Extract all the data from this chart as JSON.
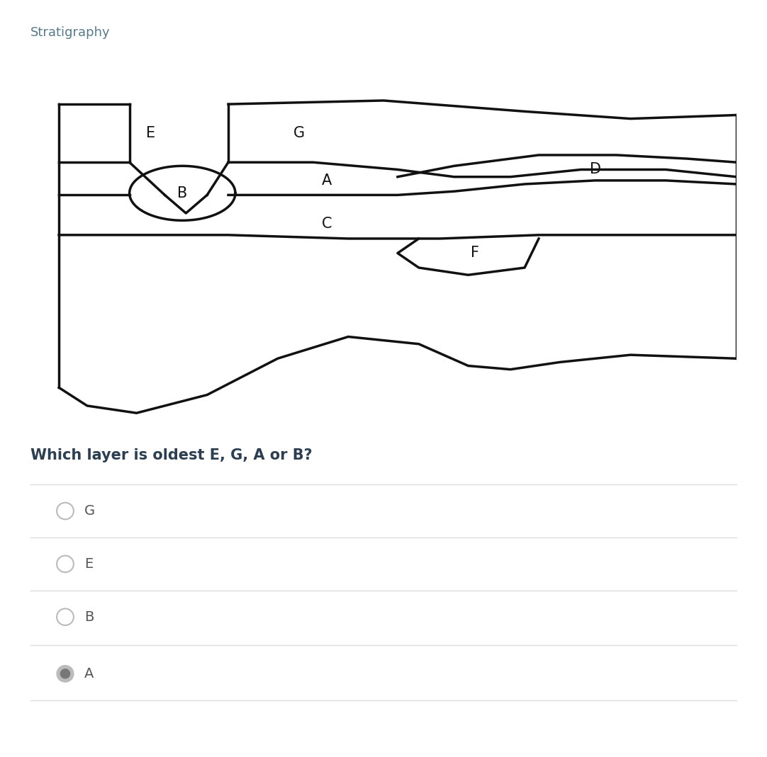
{
  "title": "Stratigraphy",
  "title_color": "#5a7a8a",
  "question": "Which layer is oldest E, G, A or B?",
  "question_color": "#2c3e50",
  "options": [
    "G",
    "E",
    "B",
    "A"
  ],
  "selected_option": "A",
  "bg_color": "#ffffff",
  "line_color": "#111111",
  "option_text_color": "#555555",
  "divider_color": "#dddddd",
  "radio_selected_fill": "#bbbbbb",
  "radio_selected_dot": "#777777",
  "radio_unselected_color": "#bbbbbb",
  "diagram_lw": 2.5
}
